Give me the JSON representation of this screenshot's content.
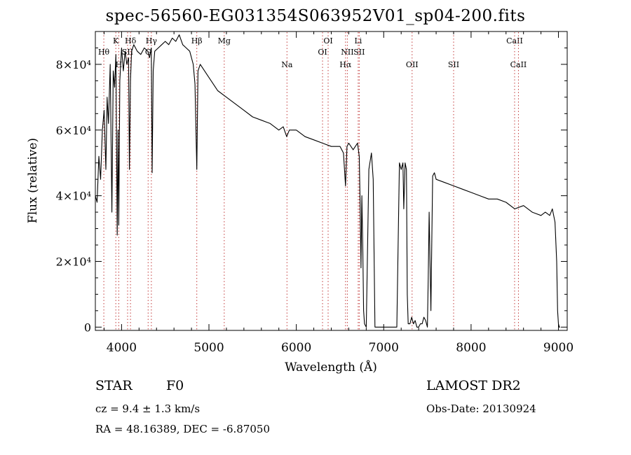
{
  "chart_data": {
    "type": "line",
    "title": "spec-56560-EG031354S063952V01_sp04-200.fits",
    "xlabel": "Wavelength (Å)",
    "ylabel": "Flux (relative)",
    "xlim": [
      3700,
      9100
    ],
    "ylim": [
      -1000,
      90000
    ],
    "x_ticks": [
      4000,
      5000,
      6000,
      7000,
      8000,
      9000
    ],
    "y_ticks": [
      {
        "value": 0,
        "label": "0"
      },
      {
        "value": 20000,
        "label": "2×10⁴"
      },
      {
        "value": 40000,
        "label": "4×10⁴"
      },
      {
        "value": 60000,
        "label": "6×10⁴"
      },
      {
        "value": 80000,
        "label": "8×10⁴"
      }
    ],
    "grid": false,
    "series": [
      {
        "x": [
          3700,
          3720,
          3740,
          3760,
          3780,
          3800,
          3820,
          3835,
          3850,
          3870,
          3889,
          3905,
          3920,
          3935,
          3950,
          3960,
          3968,
          3980,
          4000,
          4020,
          4040,
          4060,
          4080,
          4090,
          4102,
          4115,
          4140,
          4180,
          4220,
          4260,
          4300,
          4320,
          4340,
          4350,
          4362,
          4380,
          4420,
          4460,
          4500,
          4540,
          4580,
          4620,
          4660,
          4700,
          4740,
          4780,
          4800,
          4820,
          4840,
          4861,
          4875,
          4900,
          4950,
          5000,
          5100,
          5200,
          5300,
          5400,
          5500,
          5600,
          5700,
          5800,
          5850,
          5890,
          5920,
          6000,
          6100,
          6200,
          6300,
          6400,
          6500,
          6540,
          6563,
          6580,
          6600,
          6650,
          6700,
          6720,
          6730,
          6740,
          6750,
          6760,
          6770,
          6780,
          6800,
          6830,
          6860,
          6880,
          6900,
          6920,
          6940,
          6960,
          7000,
          7050,
          7100,
          7150,
          7180,
          7200,
          7220,
          7230,
          7245,
          7260,
          7270,
          7280,
          7300,
          7320,
          7340,
          7360,
          7380,
          7400,
          7420,
          7440,
          7460,
          7480,
          7500,
          7510,
          7520,
          7540,
          7550,
          7560,
          7580,
          7600,
          7700,
          7800,
          7900,
          8000,
          8100,
          8200,
          8300,
          8400,
          8500,
          8600,
          8700,
          8800,
          8850,
          8900,
          8930,
          8960,
          8980,
          8990,
          9000,
          9010,
          9020
        ],
        "y": [
          40000,
          38000,
          52000,
          45000,
          60000,
          66000,
          48000,
          70000,
          62000,
          80000,
          35000,
          78000,
          73000,
          83000,
          28000,
          60000,
          31000,
          75000,
          85000,
          78000,
          84000,
          80000,
          82000,
          48000,
          75000,
          84000,
          86000,
          84000,
          83000,
          85000,
          84000,
          82000,
          85000,
          47000,
          78000,
          84000,
          85000,
          86000,
          87000,
          86000,
          88000,
          87000,
          89000,
          86000,
          85000,
          84000,
          82000,
          80000,
          74000,
          48000,
          78000,
          80000,
          78000,
          76000,
          72000,
          70000,
          68000,
          66000,
          64000,
          63000,
          62000,
          60000,
          61000,
          58000,
          60000,
          60000,
          58000,
          57000,
          56000,
          55000,
          55000,
          53000,
          43000,
          55000,
          56000,
          54000,
          56000,
          52000,
          38000,
          18000,
          40000,
          25000,
          5000,
          1000,
          0,
          48000,
          53000,
          45000,
          0,
          0,
          0,
          0,
          0,
          0,
          0,
          0,
          50000,
          48000,
          50000,
          36000,
          50000,
          48000,
          10000,
          1000,
          1000,
          3000,
          1000,
          2000,
          0,
          0,
          1000,
          1000,
          3000,
          2000,
          0,
          15000,
          35000,
          5000,
          25000,
          46000,
          47000,
          45000,
          44000,
          43000,
          42000,
          41000,
          40000,
          39000,
          39000,
          38000,
          36000,
          37000,
          35000,
          34000,
          35000,
          34000,
          36000,
          32000,
          20000,
          5000,
          1000,
          0,
          0
        ]
      }
    ],
    "line_markers": [
      {
        "label": "Hθ",
        "wave": 3797,
        "pos": "upper"
      },
      {
        "label": "K",
        "wave": 3934,
        "pos": "top"
      },
      {
        "label": "H",
        "wave": 3968,
        "pos": "lower"
      },
      {
        "label": "SII",
        "wave": 4069,
        "pos": "upper"
      },
      {
        "label": "Hδ",
        "wave": 4102,
        "pos": "top"
      },
      {
        "label": "G",
        "wave": 4304,
        "pos": "upper"
      },
      {
        "label": "Hγ",
        "wave": 4341,
        "pos": "top"
      },
      {
        "label": "Hβ",
        "wave": 4861,
        "pos": "top"
      },
      {
        "label": "Mg",
        "wave": 5175,
        "pos": "top"
      },
      {
        "label": "Na",
        "wave": 5893,
        "pos": "lower"
      },
      {
        "label": "OI",
        "wave": 6300,
        "pos": "upper"
      },
      {
        "label": "OI",
        "wave": 6364,
        "pos": "top"
      },
      {
        "label": "Hα",
        "wave": 6563,
        "pos": "lower"
      },
      {
        "label": "NII",
        "wave": 6584,
        "pos": "upper"
      },
      {
        "label": "Li",
        "wave": 6708,
        "pos": "top"
      },
      {
        "label": "SII",
        "wave": 6720,
        "pos": "upper"
      },
      {
        "label": "OII",
        "wave": 7325,
        "pos": "lower"
      },
      {
        "label": "SII",
        "wave": 7800,
        "pos": "lower"
      },
      {
        "label": "CaII",
        "wave": 8498,
        "pos": "top"
      },
      {
        "label": "CaII",
        "wave": 8542,
        "pos": "lower"
      }
    ]
  },
  "info": {
    "object_class": "STAR",
    "subclass": "F0",
    "survey": "LAMOST DR2",
    "cz": "cz = 9.4 ± 1.3 km/s",
    "obs_date": "Obs-Date: 20130924",
    "coords": "RA =  48.16389, DEC =  -6.87050"
  }
}
